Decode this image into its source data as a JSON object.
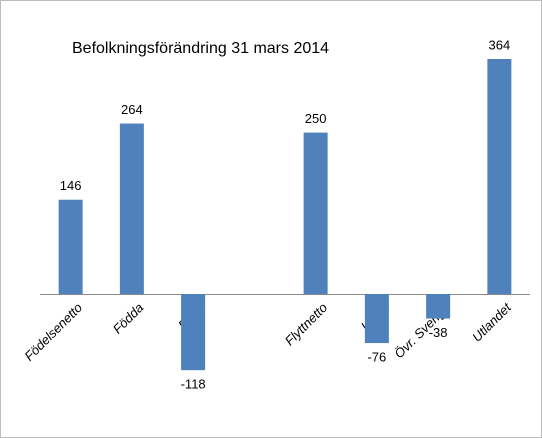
{
  "chart_data": {
    "type": "bar",
    "title": "Befolkningsförändring 31 mars 2014",
    "categories": [
      "Födelsenetto",
      "Födda",
      "Döda",
      null,
      "Flyttnetto",
      "Länet",
      "Övr. Sverige",
      "Utlandet"
    ],
    "values": [
      146,
      264,
      -118,
      null,
      250,
      -76,
      -38,
      364
    ],
    "color": "#4f81bd"
  }
}
